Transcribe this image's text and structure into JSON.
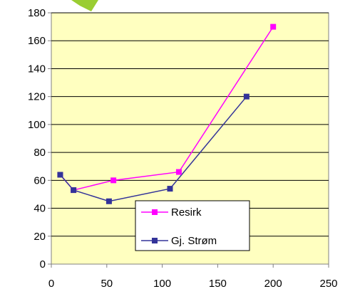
{
  "chart_data": {
    "type": "scatter",
    "title": "",
    "xlabel": "",
    "ylabel": "",
    "xlim": [
      0,
      250
    ],
    "ylim": [
      0,
      180
    ],
    "x_ticks": [
      0,
      50,
      100,
      150,
      200,
      250
    ],
    "y_ticks": [
      0,
      20,
      40,
      60,
      80,
      100,
      120,
      140,
      160,
      180
    ],
    "grid": "horizontal",
    "legend_position": "bottom-right inside plot",
    "plot_background": "#FFFFC0",
    "series": [
      {
        "name": "Resirk",
        "color": "#FF00FF",
        "marker": "square",
        "x": [
          8,
          20,
          56,
          115,
          200
        ],
        "y": [
          64,
          53,
          60,
          66,
          170
        ]
      },
      {
        "name": "Gj. Strøm",
        "color": "#333399",
        "marker": "square",
        "x": [
          8,
          20,
          52,
          107,
          176
        ],
        "y": [
          64,
          53,
          45,
          54,
          120
        ]
      }
    ]
  },
  "legend": {
    "items": [
      "Resirk",
      "Gj. Strøm"
    ]
  }
}
